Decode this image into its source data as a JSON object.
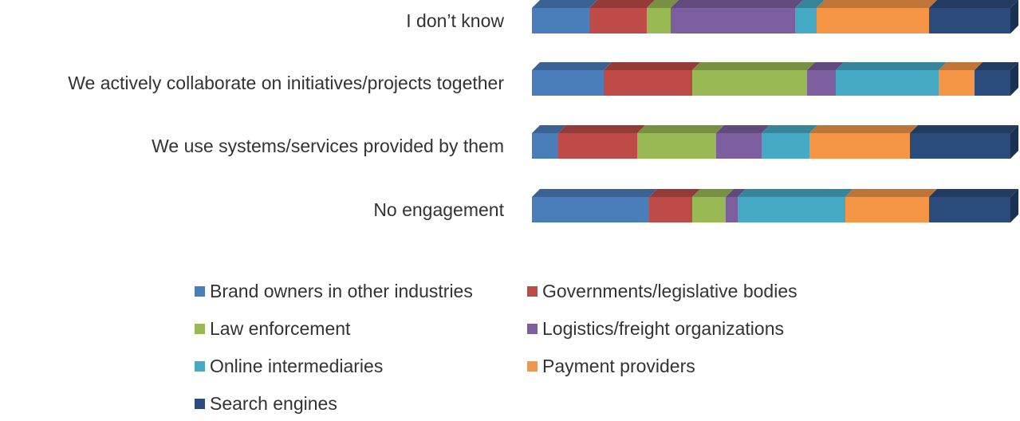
{
  "chart_data": {
    "type": "bar",
    "orientation": "horizontal",
    "stacked": "100%",
    "style": "3d",
    "categories": [
      "I don’t know",
      "We actively collaborate on initiatives/projects together",
      "We use systems/services provided by them",
      "No engagement"
    ],
    "series": [
      {
        "name": "Brand owners in other industries",
        "color": "#4a7ebb",
        "values": [
          12,
          15,
          5.5,
          24.5
        ]
      },
      {
        "name": "Governments/legislative bodies",
        "color": "#be4b48",
        "values": [
          12,
          18.5,
          16.5,
          9
        ]
      },
      {
        "name": "Law enforcement",
        "color": "#98b954",
        "values": [
          5,
          24,
          16.5,
          7
        ]
      },
      {
        "name": "Logistics/freight organizations",
        "color": "#7d5fa0",
        "values": [
          26,
          6,
          9.5,
          2.5
        ]
      },
      {
        "name": "Online intermediaries",
        "color": "#46aac5",
        "values": [
          4.5,
          21.5,
          10,
          22.5
        ]
      },
      {
        "name": "Payment providers",
        "color": "#f59646",
        "values": [
          23.5,
          7.5,
          21,
          17.5
        ]
      },
      {
        "name": "Search engines",
        "color": "#2a4b7c",
        "values": [
          17,
          7.5,
          21,
          17
        ]
      }
    ],
    "xlim": [
      0,
      100
    ],
    "grid": false,
    "legend_position": "bottom"
  }
}
